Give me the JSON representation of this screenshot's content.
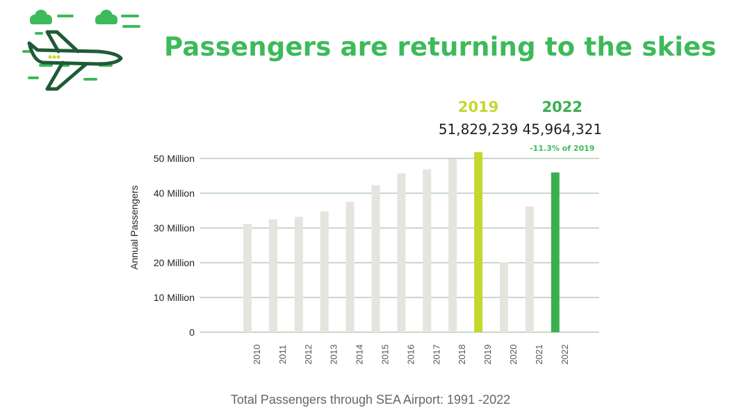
{
  "title": "Passengers are returning to the skies",
  "caption": "Total Passengers through SEA Airport: 1991 -2022",
  "colors": {
    "title": "#3dba5a",
    "bar_default": "#e5e4df",
    "bar_2019": "#c4d82e",
    "bar_2022": "#3aaf4f",
    "grid": "#8fb09a",
    "icon_dark": "#1f5a37",
    "icon_light": "#3dba5a"
  },
  "logo": {
    "icon": "airplane-with-clouds-icon"
  },
  "highlights": [
    {
      "year": "2019",
      "value": "51,829,239",
      "note": "",
      "color": "#c4d82e"
    },
    {
      "year": "2022",
      "value": "45,964,321",
      "note": "-11.3% of 2019",
      "color": "#3aaf4f"
    }
  ],
  "chart_data": {
    "type": "bar",
    "ylabel": "Annual Passengers",
    "xlabel": "",
    "ylim": [
      0,
      50000000
    ],
    "yticks": [
      {
        "value": 0,
        "label": "0"
      },
      {
        "value": 10000000,
        "label": "10 Million"
      },
      {
        "value": 20000000,
        "label": "20 Million"
      },
      {
        "value": 30000000,
        "label": "30 Million"
      },
      {
        "value": 40000000,
        "label": "40 Million"
      },
      {
        "value": 50000000,
        "label": "50 Million"
      }
    ],
    "categories": [
      "2010",
      "2011",
      "2012",
      "2013",
      "2014",
      "2015",
      "2016",
      "2017",
      "2018",
      "2019",
      "2020",
      "2021",
      "2022"
    ],
    "values": [
      31200000,
      32500000,
      33200000,
      34800000,
      37500000,
      42300000,
      45700000,
      46900000,
      49800000,
      51829239,
      20100000,
      36200000,
      45964321
    ],
    "highlighted": {
      "2019": "#c4d82e",
      "2022": "#3aaf4f"
    },
    "grid": true
  }
}
